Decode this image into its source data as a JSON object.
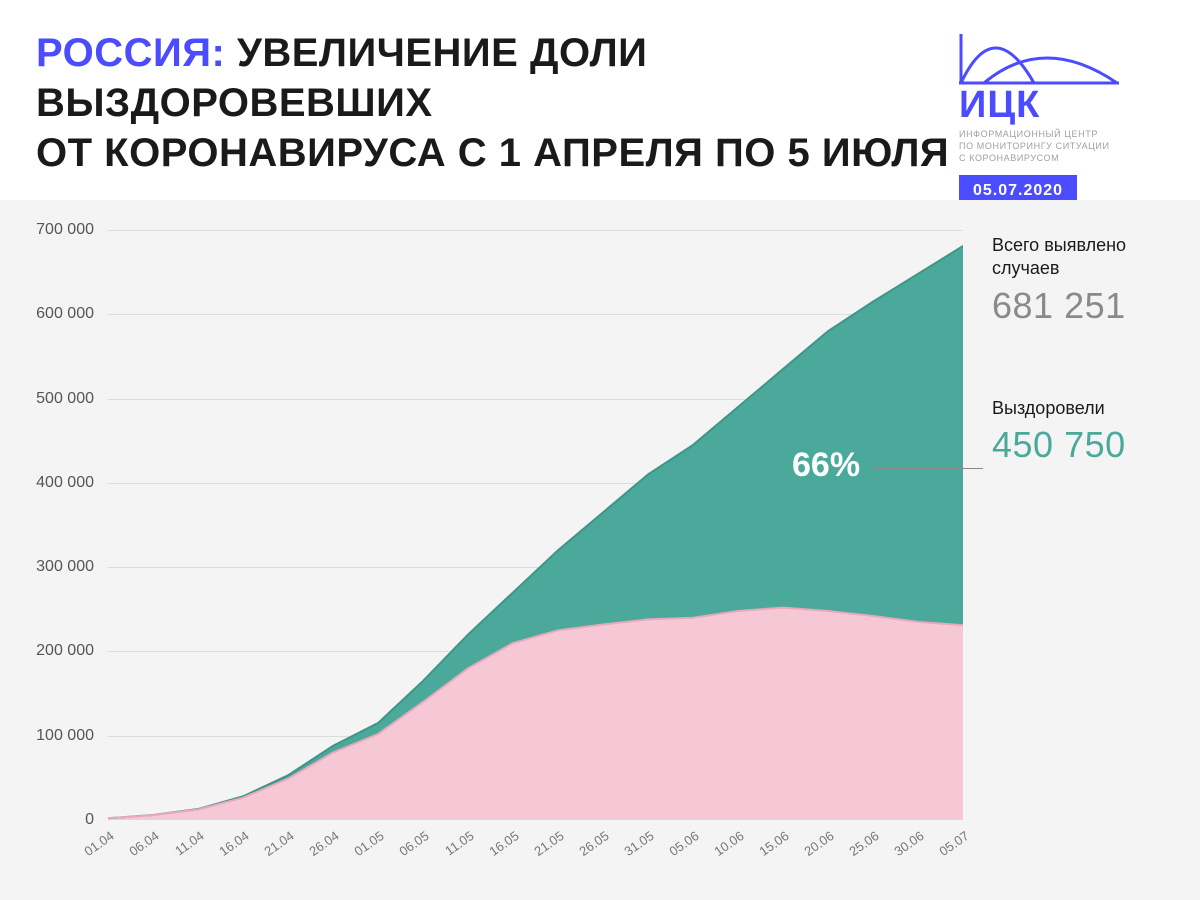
{
  "header": {
    "prefix": "РОССИЯ:",
    "line1_rest": " УВЕЛИЧЕНИЕ ДОЛИ ВЫЗДОРОВЕВШИХ",
    "line2": "ОТ КОРОНАВИРУСА С 1 АПРЕЛЯ ПО 5 ИЮЛЯ"
  },
  "logo": {
    "abbr": "ИЦК",
    "sub1": "ИНФОРМАЦИОННЫЙ ЦЕНТР",
    "sub2": "ПО МОНИТОРИНГУ СИТУАЦИИ",
    "sub3": "С КОРОНАВИРУСОМ",
    "date": "05.07.2020",
    "curve_color": "#4b4bff"
  },
  "stats": {
    "total_label": "Всего выявлено случаев",
    "total_value": "681 251",
    "recovered_label": "Выздоровели",
    "recovered_value": "450 750",
    "percent_label": "66%"
  },
  "chart": {
    "type": "area",
    "background_color": "#f4f4f4",
    "grid_color": "#dcdcdc",
    "total_fill": "#4aa99a",
    "remaining_fill": "#f6c8d6",
    "top_line_color": "#3e9588",
    "bottom_line_color": "#e9a9bd",
    "ylim": [
      0,
      700000
    ],
    "y_ticks": [
      0,
      100000,
      200000,
      300000,
      400000,
      500000,
      600000,
      700000
    ],
    "y_tick_labels": [
      "0",
      "100 000",
      "200 000",
      "300 000",
      "400 000",
      "500 000",
      "600 000",
      "700 000"
    ],
    "x_labels": [
      "01.04",
      "06.04",
      "11.04",
      "16.04",
      "21.04",
      "26.04",
      "01.05",
      "06.05",
      "11.05",
      "16.05",
      "21.05",
      "26.05",
      "31.05",
      "05.06",
      "10.06",
      "15.06",
      "20.06",
      "25.06",
      "30.06",
      "05.07"
    ],
    "series_total": [
      2000,
      6000,
      13000,
      28000,
      53000,
      88000,
      115000,
      165000,
      220000,
      270000,
      320000,
      365000,
      410000,
      445000,
      490000,
      535000,
      580000,
      615000,
      648000,
      681000
    ],
    "series_remaining": [
      2000,
      5800,
      12500,
      26500,
      49000,
      80000,
      102000,
      140000,
      180000,
      210000,
      225000,
      232000,
      238000,
      240000,
      248000,
      252000,
      248000,
      242000,
      235000,
      231000
    ],
    "axis_label_fontsize": 16,
    "tick_fontsize": 13,
    "line_width": 2
  }
}
